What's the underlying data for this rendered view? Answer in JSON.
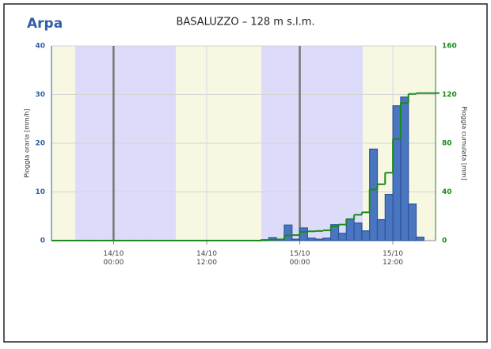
{
  "logo": "Arpa",
  "chart_data": {
    "type": "bar",
    "title": "BASALUZZO – 128 m s.l.m.",
    "y_label": "Pioggia oraria [mm/h]",
    "y2_label": "Pioggia cumulata [mm]",
    "x": [
      "13/10 16:00",
      "13/10 17:00",
      "13/10 18:00",
      "13/10 19:00",
      "13/10 20:00",
      "13/10 21:00",
      "13/10 22:00",
      "13/10 23:00",
      "14/10 00:00",
      "14/10 01:00",
      "14/10 02:00",
      "14/10 03:00",
      "14/10 04:00",
      "14/10 05:00",
      "14/10 06:00",
      "14/10 07:00",
      "14/10 08:00",
      "14/10 09:00",
      "14/10 10:00",
      "14/10 11:00",
      "14/10 12:00",
      "14/10 13:00",
      "14/10 14:00",
      "14/10 15:00",
      "14/10 16:00",
      "14/10 17:00",
      "14/10 18:00",
      "14/10 19:00",
      "14/10 20:00",
      "14/10 21:00",
      "14/10 22:00",
      "14/10 23:00",
      "15/10 00:00",
      "15/10 01:00",
      "15/10 02:00",
      "15/10 03:00",
      "15/10 04:00",
      "15/10 05:00",
      "15/10 06:00",
      "15/10 07:00",
      "15/10 08:00",
      "15/10 09:00",
      "15/10 10:00",
      "15/10 11:00",
      "15/10 12:00",
      "15/10 13:00",
      "15/10 14:00",
      "15/10 15:00",
      "15/10 16:00",
      "15/10 17:00"
    ],
    "series": [
      {
        "name": "Pioggia oraria",
        "color": "#4a76c0",
        "values": [
          0,
          0,
          0,
          0,
          0,
          0,
          0,
          0,
          0,
          0,
          0,
          0,
          0,
          0,
          0,
          0,
          0,
          0,
          0,
          0,
          0,
          0,
          0,
          0,
          0,
          0,
          0,
          0.2,
          0.6,
          0.2,
          3.2,
          0.3,
          2.6,
          0.5,
          0.3,
          0.5,
          3.3,
          1.5,
          4.4,
          3.6,
          2.0,
          18.8,
          4.3,
          9.5,
          27.7,
          29.5,
          7.5,
          0.7,
          0,
          0
        ]
      },
      {
        "name": "Pioggia cumulata",
        "color": "#1a8a1a",
        "axis": "y2",
        "values": [
          0,
          0,
          0,
          0,
          0,
          0,
          0,
          0,
          0,
          0,
          0,
          0,
          0,
          0,
          0,
          0,
          0,
          0,
          0,
          0,
          0,
          0,
          0,
          0,
          0,
          0,
          0,
          0.2,
          0.8,
          1.0,
          4.2,
          4.5,
          7.1,
          7.6,
          7.9,
          8.4,
          11.7,
          13.2,
          17.6,
          21.2,
          23.2,
          42.0,
          46.3,
          55.8,
          83.5,
          113.0,
          120.5,
          121.2,
          121.2,
          121.2
        ]
      }
    ],
    "xlim": [
      "13/10 16:00",
      "15/10 17:30"
    ],
    "xticks": [
      "14/10 00:00",
      "14/10 12:00",
      "15/10 00:00",
      "15/10 12:00"
    ],
    "ylim": [
      0,
      40
    ],
    "yticks": [
      0,
      10,
      20,
      30,
      40
    ],
    "y2lim": [
      0,
      160
    ],
    "y2ticks": [
      0,
      40,
      80,
      120,
      160
    ],
    "grid": true
  }
}
